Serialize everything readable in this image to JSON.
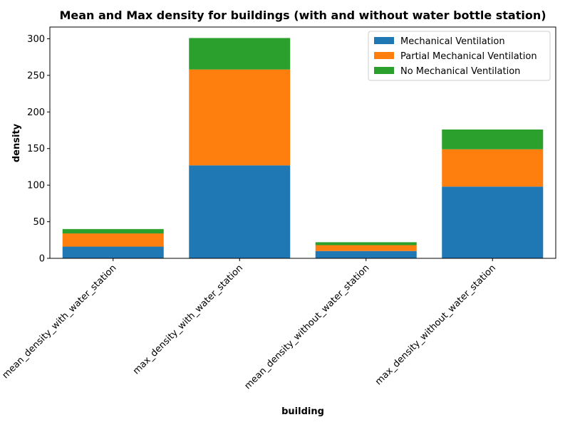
{
  "chart_data": {
    "type": "bar",
    "stacked": true,
    "title": "Mean and Max density for buildings (with and without water bottle station)",
    "xlabel": "building",
    "ylabel": "density",
    "categories": [
      "mean_density_with_water_station",
      "max_density_with_water_station",
      "mean_density_without_water_station",
      "max_density_without_water_station"
    ],
    "series": [
      {
        "name": "Mechanical Ventilation",
        "color": "#1f77b4",
        "values": [
          16,
          127,
          10,
          98
        ]
      },
      {
        "name": "Partial Mechanical Ventilation",
        "color": "#ff7f0e",
        "values": [
          18,
          131,
          8,
          51
        ]
      },
      {
        "name": "No Mechanical Ventilation",
        "color": "#2ca02c",
        "values": [
          6,
          43,
          4,
          27
        ]
      }
    ],
    "ylim": [
      0,
      316
    ],
    "yticks": [
      0,
      50,
      100,
      150,
      200,
      250,
      300
    ],
    "legend_position": "top-right",
    "grid": false
  }
}
